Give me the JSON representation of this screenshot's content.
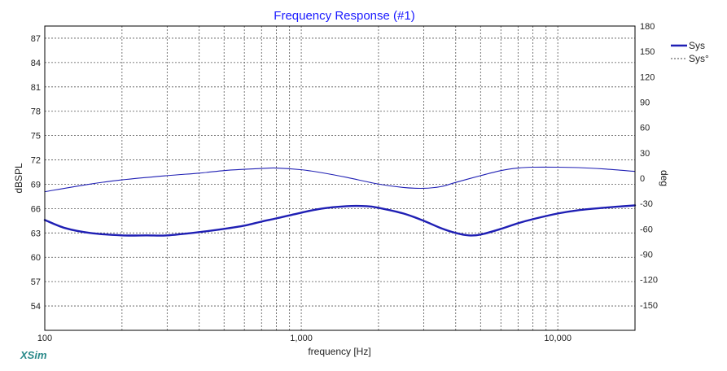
{
  "chart_data": {
    "type": "line",
    "title": "Frequency Response (#1)",
    "xlabel": "frequency [Hz]",
    "ylabel": "dBSPL",
    "y2label": "deg",
    "x_scale": "log",
    "xlim": [
      100,
      20000
    ],
    "ylim": [
      51,
      88.5
    ],
    "y2lim": [
      -180,
      180
    ],
    "x_tick_labels": [
      {
        "value": 100,
        "label": "100"
      },
      {
        "value": 1000,
        "label": "1,000"
      },
      {
        "value": 10000,
        "label": "10,000"
      }
    ],
    "y_ticks": [
      54,
      57,
      60,
      63,
      66,
      69,
      72,
      75,
      78,
      81,
      84,
      87
    ],
    "y2_ticks": [
      -150,
      -120,
      -90,
      -60,
      -30,
      0,
      30,
      60,
      90,
      120,
      150,
      180
    ],
    "grid": true,
    "legend_position": "top-right",
    "series": [
      {
        "name": "Sys",
        "axis": "left",
        "style": "solid-thick",
        "color": "#1f1fb4",
        "points": [
          [
            100,
            64.6
          ],
          [
            120,
            63.6
          ],
          [
            150,
            63.0
          ],
          [
            200,
            62.7
          ],
          [
            250,
            62.7
          ],
          [
            300,
            62.7
          ],
          [
            400,
            63.1
          ],
          [
            500,
            63.5
          ],
          [
            600,
            63.9
          ],
          [
            700,
            64.4
          ],
          [
            800,
            64.8
          ],
          [
            1000,
            65.5
          ],
          [
            1200,
            66.0
          ],
          [
            1500,
            66.3
          ],
          [
            1800,
            66.3
          ],
          [
            2000,
            66.1
          ],
          [
            2500,
            65.4
          ],
          [
            3000,
            64.5
          ],
          [
            3500,
            63.6
          ],
          [
            4000,
            63.0
          ],
          [
            4500,
            62.7
          ],
          [
            5000,
            62.8
          ],
          [
            6000,
            63.5
          ],
          [
            7000,
            64.2
          ],
          [
            8000,
            64.7
          ],
          [
            10000,
            65.4
          ],
          [
            12000,
            65.8
          ],
          [
            15000,
            66.1
          ],
          [
            20000,
            66.4
          ]
        ]
      },
      {
        "name": "Sys°",
        "axis": "right",
        "style": "solid-thin",
        "color": "#1f1fb4",
        "points": [
          [
            100,
            -16
          ],
          [
            150,
            -7
          ],
          [
            200,
            -2
          ],
          [
            300,
            3
          ],
          [
            400,
            6
          ],
          [
            500,
            9
          ],
          [
            600,
            10.5
          ],
          [
            700,
            11.5
          ],
          [
            800,
            12
          ],
          [
            1000,
            10
          ],
          [
            1200,
            6.5
          ],
          [
            1500,
            1
          ],
          [
            2000,
            -7
          ],
          [
            2500,
            -11
          ],
          [
            3000,
            -12
          ],
          [
            3500,
            -10
          ],
          [
            4000,
            -5
          ],
          [
            5000,
            3
          ],
          [
            6000,
            9
          ],
          [
            7000,
            12
          ],
          [
            8000,
            13
          ],
          [
            10000,
            13
          ],
          [
            12000,
            12.5
          ],
          [
            15000,
            11
          ],
          [
            20000,
            8
          ]
        ]
      }
    ]
  },
  "legend": {
    "series1": "Sys",
    "series2": "Sys°"
  },
  "brand": "XSim",
  "colors": {
    "title": "#1a1aff",
    "curve": "#1f1fb4",
    "grid": "#555555",
    "brand": "#2a8a8a"
  }
}
